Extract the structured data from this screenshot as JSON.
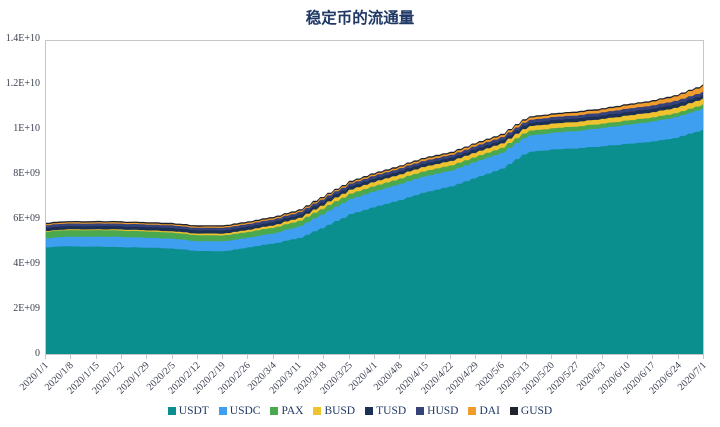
{
  "title": "稳定币的流通量",
  "chart_data": {
    "type": "area",
    "stacked": true,
    "title": "稳定币的流通量",
    "x_interval": "weekly",
    "x": [
      "2020/1/1",
      "2020/1/8",
      "2020/1/15",
      "2020/1/22",
      "2020/1/29",
      "2020/2/5",
      "2020/2/12",
      "2020/2/19",
      "2020/2/26",
      "2020/3/4",
      "2020/3/11",
      "2020/3/18",
      "2020/3/25",
      "2020/4/1",
      "2020/4/8",
      "2020/4/15",
      "2020/4/22",
      "2020/4/29",
      "2020/5/6",
      "2020/5/13",
      "2020/5/20",
      "2020/5/27",
      "2020/6/3",
      "2020/6/10",
      "2020/6/17",
      "2020/6/24",
      "2020/7/1"
    ],
    "ylim": [
      0,
      14000000000.0
    ],
    "ytick_labels": [
      "0",
      "2E+09",
      "4E+09",
      "6E+09",
      "8E+09",
      "1E+10",
      "1.2E+10",
      "1.4E+10"
    ],
    "grid": false,
    "legend_position": "bottom",
    "series": [
      {
        "name": "USDT",
        "color": "#0b8e8e",
        "values": [
          4780000000.0,
          4820000000.0,
          4800000000.0,
          4770000000.0,
          4750000000.0,
          4720000000.0,
          4600000000.0,
          4600000000.0,
          4780000000.0,
          4950000000.0,
          5200000000.0,
          5700000000.0,
          6250000000.0,
          6600000000.0,
          6900000000.0,
          7250000000.0,
          7500000000.0,
          7900000000.0,
          8300000000.0,
          9020000000.0,
          9150000000.0,
          9200000000.0,
          9300000000.0,
          9400000000.0,
          9500000000.0,
          9700000000.0,
          10050000000.0
        ]
      },
      {
        "name": "USDC",
        "color": "#3e9ff0",
        "values": [
          400000000.0,
          430000000.0,
          450000000.0,
          460000000.0,
          450000000.0,
          440000000.0,
          440000000.0,
          450000000.0,
          440000000.0,
          450000000.0,
          520000000.0,
          620000000.0,
          680000000.0,
          700000000.0,
          720000000.0,
          720000000.0,
          710000000.0,
          720000000.0,
          710000000.0,
          730000000.0,
          750000000.0,
          780000000.0,
          820000000.0,
          860000000.0,
          900000000.0,
          930000000.0,
          950000000.0
        ]
      },
      {
        "name": "PAX",
        "color": "#4aa84e",
        "values": [
          300000000.0,
          290000000.0,
          290000000.0,
          280000000.0,
          280000000.0,
          270000000.0,
          270000000.0,
          260000000.0,
          260000000.0,
          260000000.0,
          250000000.0,
          250000000.0,
          240000000.0,
          240000000.0,
          240000000.0,
          230000000.0,
          230000000.0,
          220000000.0,
          220000000.0,
          210000000.0,
          200000000.0,
          200000000.0,
          190000000.0,
          190000000.0,
          180000000.0,
          180000000.0,
          180000000.0
        ]
      },
      {
        "name": "BUSD",
        "color": "#efc230",
        "values": [
          30000000.0,
          40000000.0,
          40000000.0,
          50000000.0,
          50000000.0,
          60000000.0,
          70000000.0,
          80000000.0,
          90000000.0,
          110000000.0,
          130000000.0,
          160000000.0,
          180000000.0,
          190000000.0,
          190000000.0,
          200000000.0,
          200000000.0,
          200000000.0,
          200000000.0,
          200000000.0,
          210000000.0,
          210000000.0,
          210000000.0,
          220000000.0,
          230000000.0,
          240000000.0,
          260000000.0
        ]
      },
      {
        "name": "TUSD",
        "color": "#1c3055",
        "values": [
          140000000.0,
          140000000.0,
          140000000.0,
          140000000.0,
          140000000.0,
          140000000.0,
          140000000.0,
          140000000.0,
          140000000.0,
          140000000.0,
          140000000.0,
          140000000.0,
          140000000.0,
          140000000.0,
          140000000.0,
          140000000.0,
          140000000.0,
          140000000.0,
          140000000.0,
          140000000.0,
          150000000.0,
          150000000.0,
          150000000.0,
          160000000.0,
          160000000.0,
          160000000.0,
          160000000.0
        ]
      },
      {
        "name": "HUSD",
        "color": "#36427a",
        "values": [
          120000000.0,
          120000000.0,
          120000000.0,
          120000000.0,
          120000000.0,
          120000000.0,
          120000000.0,
          120000000.0,
          120000000.0,
          120000000.0,
          120000000.0,
          130000000.0,
          130000000.0,
          130000000.0,
          130000000.0,
          130000000.0,
          130000000.0,
          140000000.0,
          140000000.0,
          140000000.0,
          140000000.0,
          140000000.0,
          140000000.0,
          150000000.0,
          150000000.0,
          150000000.0,
          150000000.0
        ]
      },
      {
        "name": "DAI",
        "color": "#ef9b2d",
        "values": [
          50000000.0,
          50000000.0,
          50000000.0,
          50000000.0,
          50000000.0,
          50000000.0,
          50000000.0,
          60000000.0,
          60000000.0,
          60000000.0,
          60000000.0,
          60000000.0,
          60000000.0,
          70000000.0,
          70000000.0,
          80000000.0,
          80000000.0,
          90000000.0,
          90000000.0,
          100000000.0,
          110000000.0,
          120000000.0,
          130000000.0,
          150000000.0,
          170000000.0,
          210000000.0,
          260000000.0
        ]
      },
      {
        "name": "GUSD",
        "color": "#1f232b",
        "values": [
          60000000.0,
          60000000.0,
          60000000.0,
          60000000.0,
          60000000.0,
          60000000.0,
          60000000.0,
          60000000.0,
          60000000.0,
          60000000.0,
          60000000.0,
          60000000.0,
          60000000.0,
          60000000.0,
          60000000.0,
          60000000.0,
          60000000.0,
          60000000.0,
          60000000.0,
          60000000.0,
          60000000.0,
          60000000.0,
          60000000.0,
          60000000.0,
          60000000.0,
          60000000.0,
          60000000.0
        ]
      }
    ]
  }
}
